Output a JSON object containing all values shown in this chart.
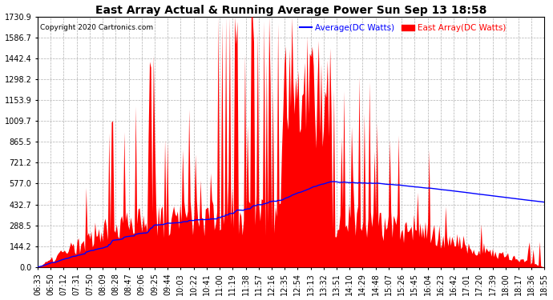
{
  "title": "East Array Actual & Running Average Power Sun Sep 13 18:58",
  "copyright": "Copyright 2020 Cartronics.com",
  "legend_avg": "Average(DC Watts)",
  "legend_east": "East Array(DC Watts)",
  "ylabel_values": [
    0.0,
    144.2,
    288.5,
    432.7,
    577.0,
    721.2,
    865.5,
    1009.7,
    1153.9,
    1298.2,
    1442.4,
    1586.7,
    1730.9
  ],
  "ylim": [
    0,
    1730.9
  ],
  "background_color": "#ffffff",
  "grid_color": "#b0b0b0",
  "bar_color": "#ff0000",
  "avg_line_color": "#0000ff",
  "title_color": "#000000",
  "copyright_color": "#000000",
  "tick_labels": [
    "06:33",
    "06:50",
    "07:12",
    "07:31",
    "07:50",
    "08:09",
    "08:28",
    "08:47",
    "09:06",
    "09:25",
    "09:44",
    "10:03",
    "10:22",
    "10:41",
    "11:00",
    "11:19",
    "11:38",
    "11:57",
    "12:16",
    "12:35",
    "12:54",
    "13:13",
    "13:32",
    "13:51",
    "14:10",
    "14:29",
    "14:48",
    "15:07",
    "15:26",
    "15:45",
    "16:04",
    "16:23",
    "16:42",
    "17:01",
    "17:20",
    "17:39",
    "18:00",
    "18:17",
    "18:36",
    "18:55"
  ],
  "num_points": 400
}
